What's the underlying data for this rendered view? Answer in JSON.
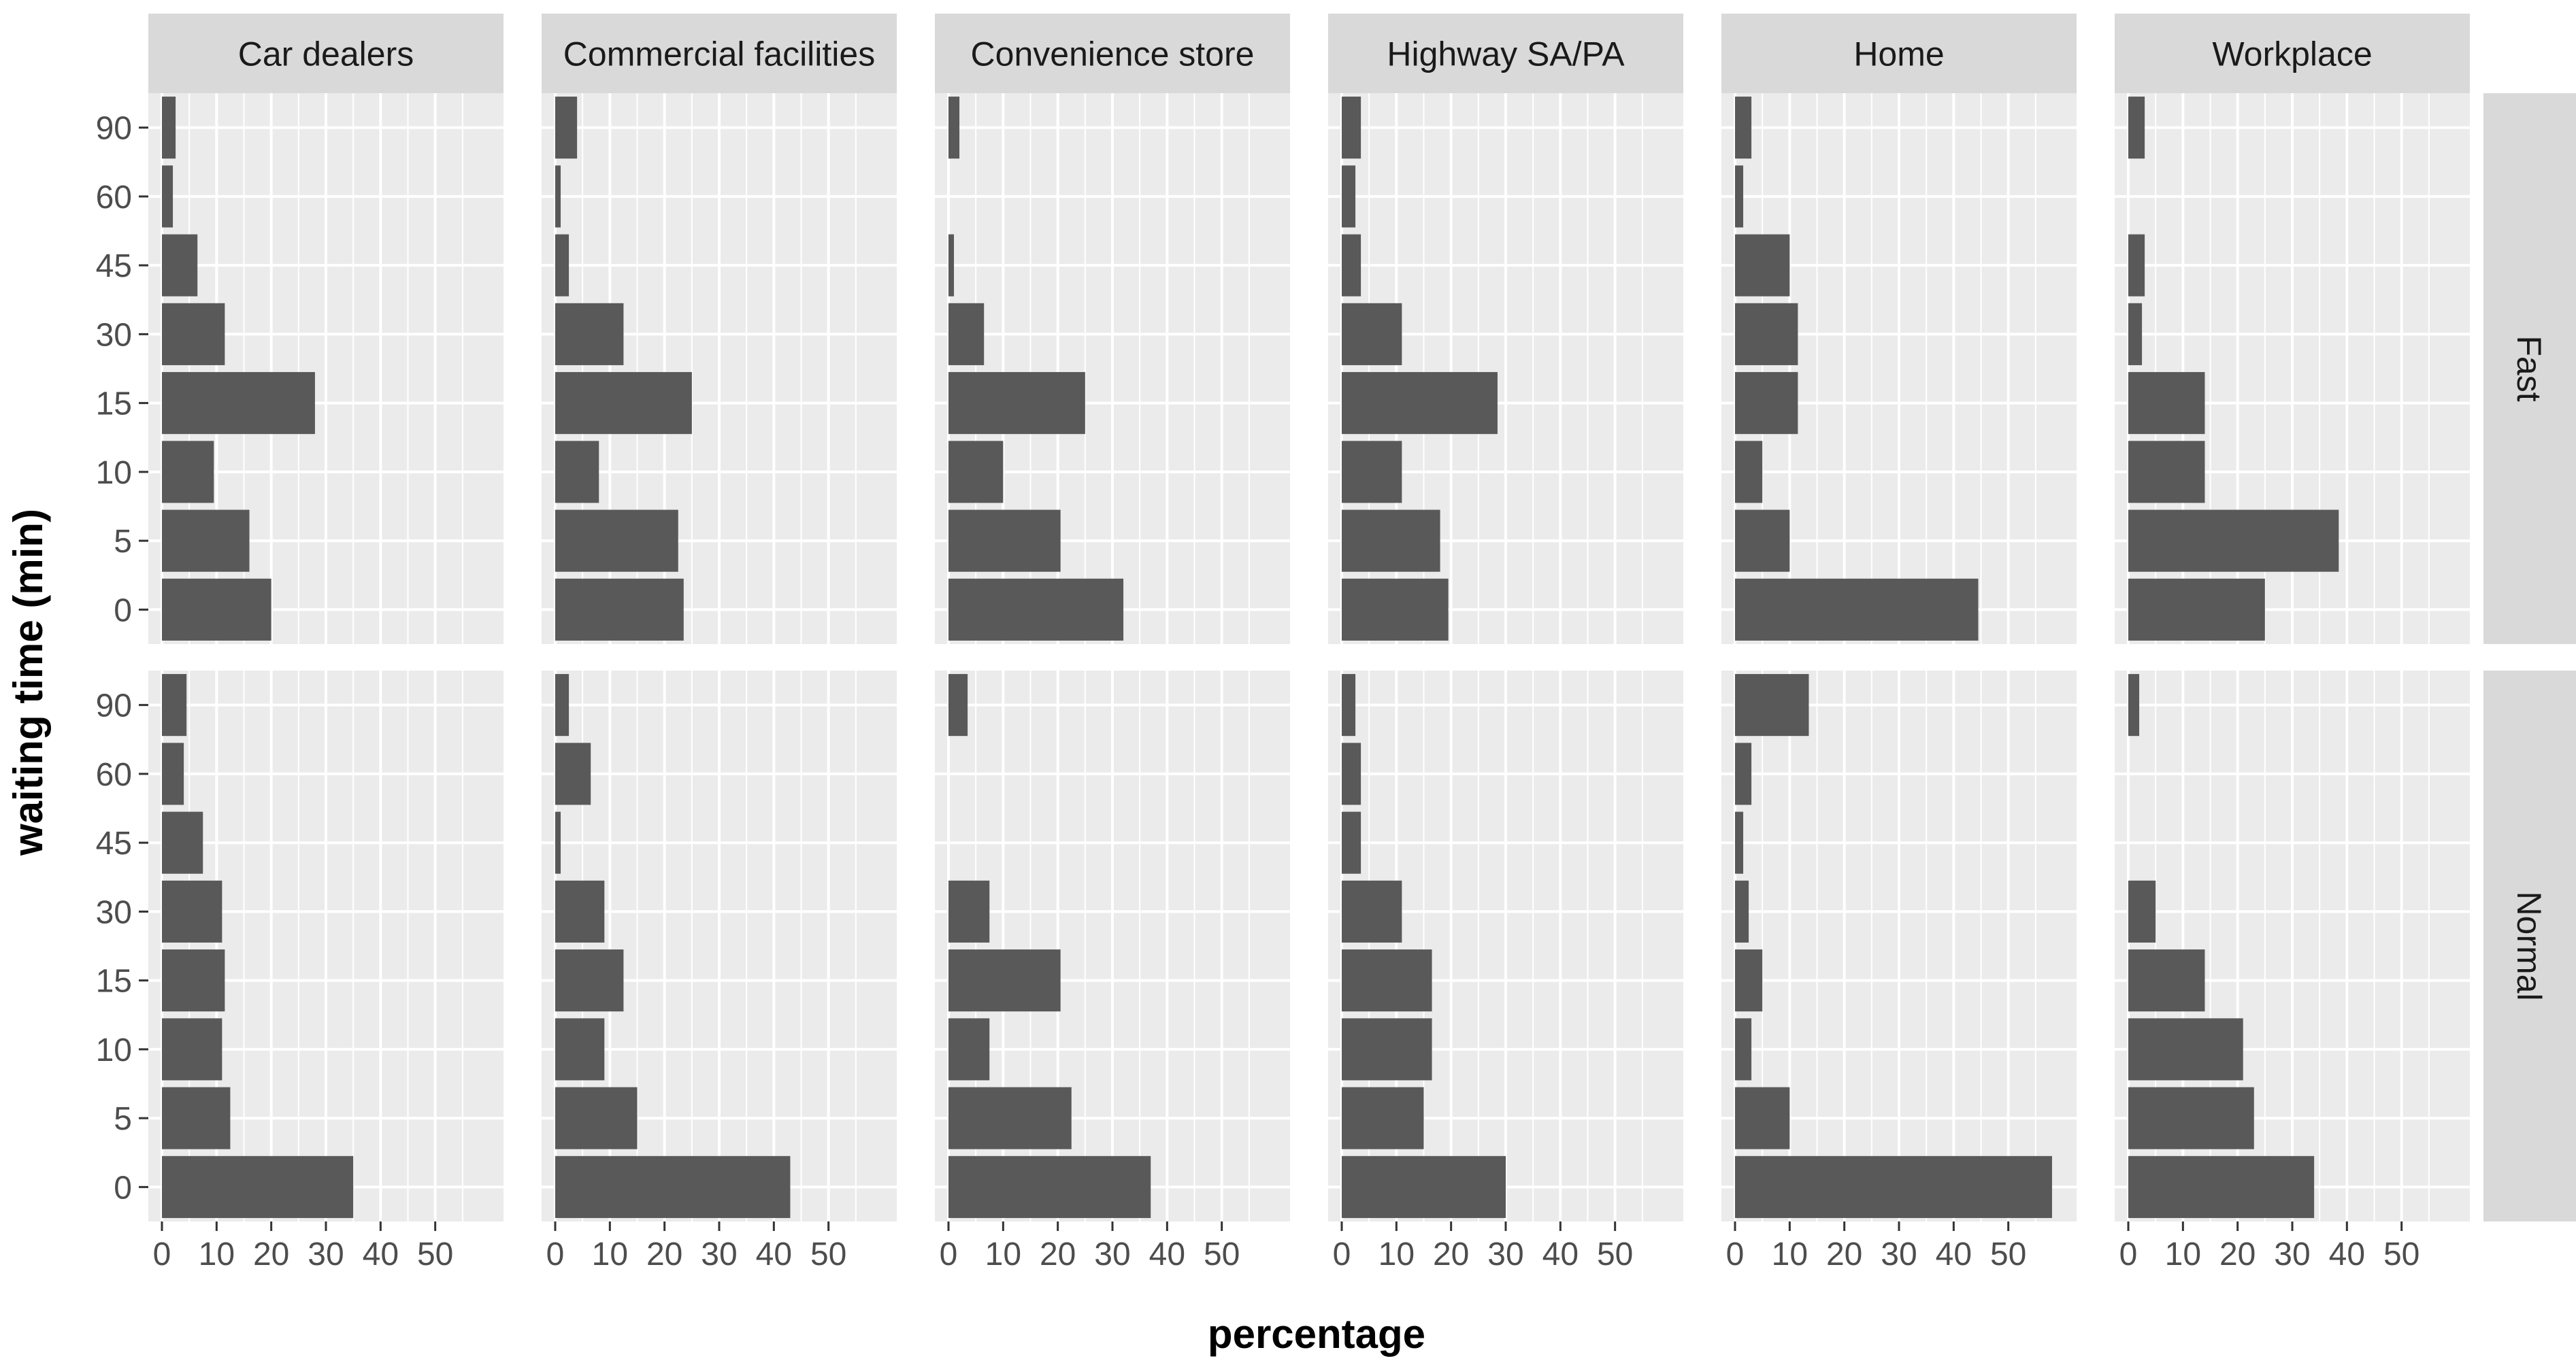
{
  "chart_data": {
    "type": "bar",
    "orientation": "horizontal",
    "xlabel": "percentage",
    "ylabel": "waiting time (min)",
    "categories": [
      "0",
      "5",
      "10",
      "15",
      "30",
      "45",
      "60",
      "90"
    ],
    "xlim": [
      0,
      60
    ],
    "x_ticks": [
      "0",
      "10",
      "20",
      "30",
      "40",
      "50"
    ],
    "columns": [
      "Car dealers",
      "Commercial facilities",
      "Convenience store",
      "Highway SA/PA",
      "Home",
      "Workplace"
    ],
    "rows": [
      "Fast",
      "Normal"
    ],
    "panels": [
      {
        "row": "Fast",
        "column": "Car dealers",
        "values": [
          20,
          16,
          9.5,
          28,
          11.5,
          6.5,
          2,
          2.5
        ]
      },
      {
        "row": "Fast",
        "column": "Commercial facilities",
        "values": [
          23.5,
          22.5,
          8,
          25,
          12.5,
          2.5,
          1,
          4
        ]
      },
      {
        "row": "Fast",
        "column": "Convenience store",
        "values": [
          32,
          20.5,
          10,
          25,
          6.5,
          1,
          0,
          2
        ]
      },
      {
        "row": "Fast",
        "column": "Highway SA/PA",
        "values": [
          19.5,
          18,
          11,
          28.5,
          11,
          3.5,
          2.5,
          3.5
        ]
      },
      {
        "row": "Fast",
        "column": "Home",
        "values": [
          44.5,
          10,
          5,
          11.5,
          11.5,
          10,
          1.5,
          3
        ]
      },
      {
        "row": "Fast",
        "column": "Workplace",
        "values": [
          25,
          38.5,
          14,
          14,
          2.5,
          3,
          0,
          3
        ]
      },
      {
        "row": "Normal",
        "column": "Car dealers",
        "values": [
          35,
          12.5,
          11,
          11.5,
          11,
          7.5,
          4,
          4.5
        ]
      },
      {
        "row": "Normal",
        "column": "Commercial facilities",
        "values": [
          43,
          15,
          9,
          12.5,
          9,
          1,
          6.5,
          2.5
        ]
      },
      {
        "row": "Normal",
        "column": "Convenience store",
        "values": [
          37,
          22.5,
          7.5,
          20.5,
          7.5,
          0,
          0,
          3.5
        ]
      },
      {
        "row": "Normal",
        "column": "Highway SA/PA",
        "values": [
          30,
          15,
          16.5,
          16.5,
          11,
          3.5,
          3.5,
          2.5
        ]
      },
      {
        "row": "Normal",
        "column": "Home",
        "values": [
          58,
          10,
          3,
          5,
          2.5,
          1.5,
          3,
          13.5
        ]
      },
      {
        "row": "Normal",
        "column": "Workplace",
        "values": [
          34,
          23,
          21,
          14,
          5,
          0,
          0,
          2
        ]
      }
    ],
    "colors": {
      "panel_background": "#ebebeb",
      "grid": "#ffffff",
      "bar": "#595959",
      "strip": "#d9d9d9",
      "tick": "#333333"
    }
  }
}
